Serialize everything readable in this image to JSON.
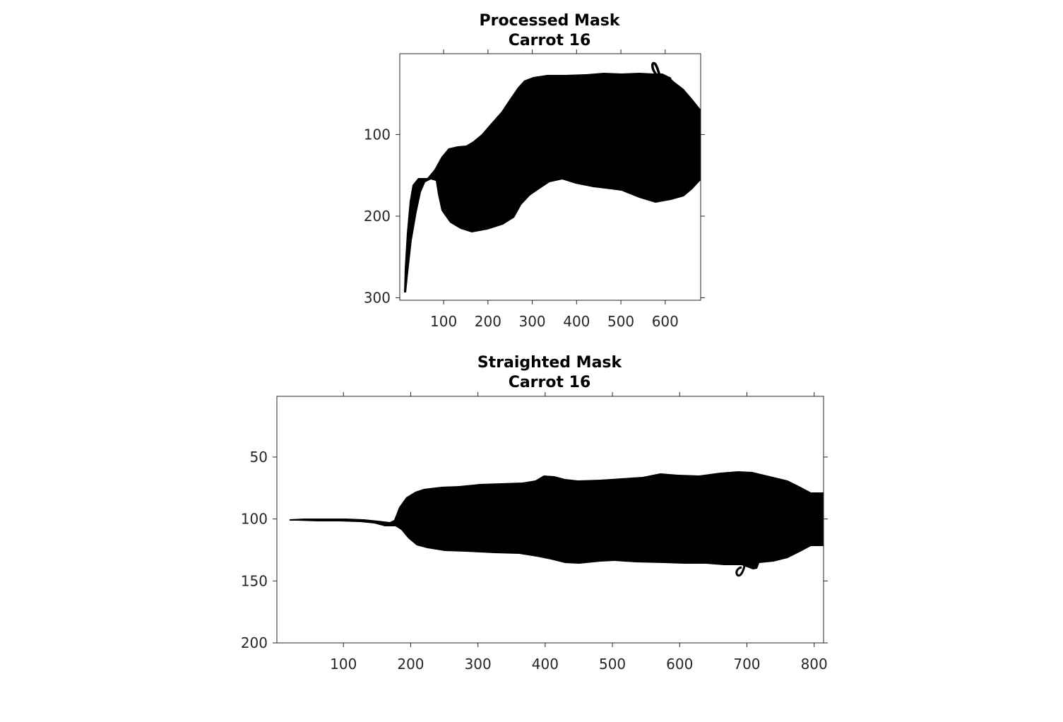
{
  "panels": [
    {
      "title_line1": "Processed Mask",
      "title_line2": "Carrot 16",
      "x_ticks": [
        100,
        200,
        300,
        400,
        500,
        600
      ],
      "y_ticks": [
        100,
        200,
        300
      ],
      "x_range": [
        1,
        680
      ],
      "y_range": [
        1,
        303
      ],
      "axis_direction": "image (y increases downward)"
    },
    {
      "title_line1": "Straighted Mask",
      "title_line2": "Carrot 16",
      "x_ticks": [
        100,
        200,
        300,
        400,
        500,
        600,
        700,
        800
      ],
      "y_ticks": [
        50,
        100,
        150,
        200
      ],
      "x_range": [
        1,
        814
      ],
      "y_range": [
        1,
        200
      ],
      "axis_direction": "image (y increases downward)"
    }
  ],
  "colors": {
    "mask": "#000000",
    "background": "#ffffff",
    "axis": "#262626",
    "tick_label": "#262626"
  }
}
